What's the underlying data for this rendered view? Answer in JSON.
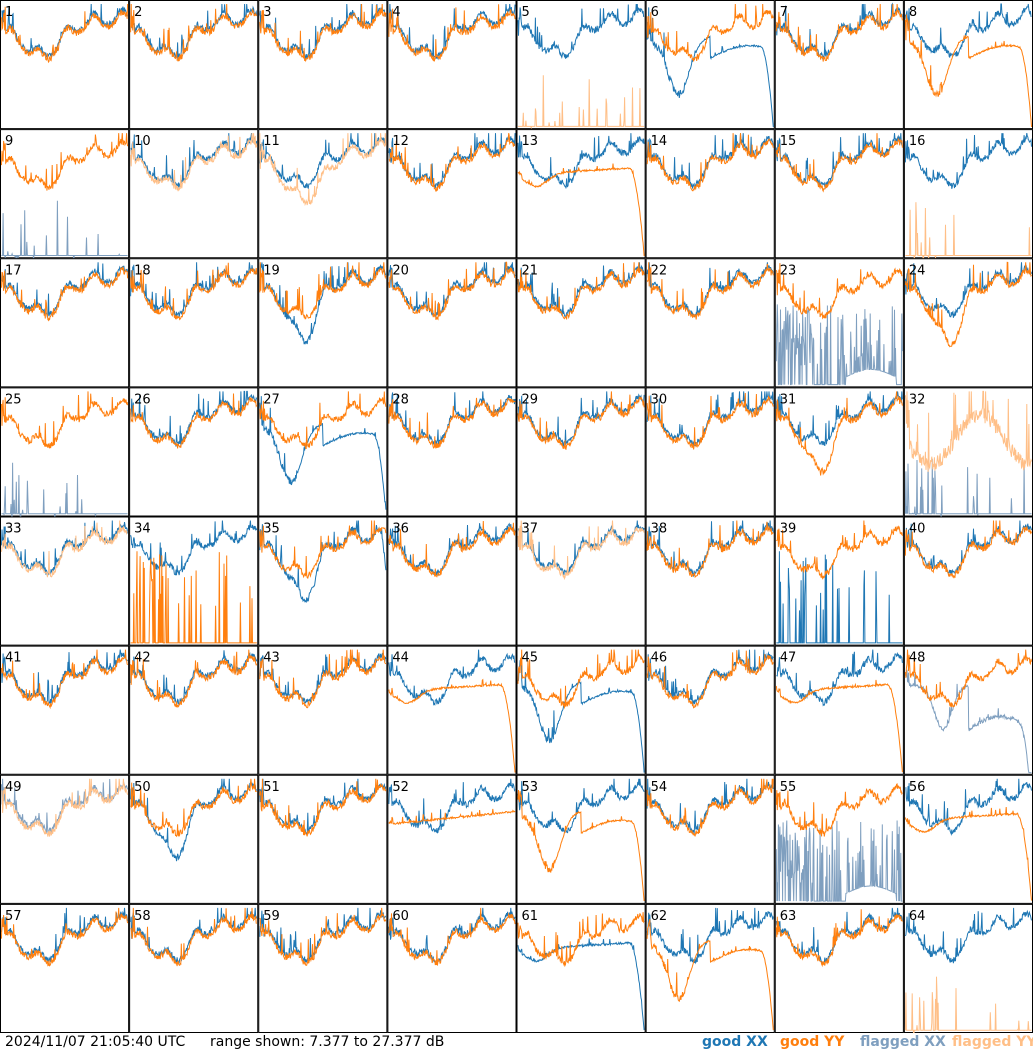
{
  "chart_data": {
    "type": "line",
    "panels": [
      "1",
      "2",
      "3",
      "4",
      "5",
      "6",
      "7",
      "8",
      "9",
      "10",
      "11",
      "12",
      "13",
      "14",
      "15",
      "16",
      "17",
      "18",
      "19",
      "20",
      "21",
      "22",
      "23",
      "24",
      "25",
      "26",
      "27",
      "28",
      "29",
      "30",
      "31",
      "32",
      "33",
      "34",
      "35",
      "36",
      "37",
      "38",
      "39",
      "40",
      "41",
      "42",
      "43",
      "44",
      "45",
      "46",
      "47",
      "48",
      "49",
      "50",
      "51",
      "52",
      "53",
      "54",
      "55",
      "56",
      "57",
      "58",
      "59",
      "60",
      "61",
      "62",
      "63",
      "64"
    ],
    "grid": {
      "rows": 8,
      "cols": 8
    },
    "ylim": [
      7.377,
      27.377
    ],
    "yunit": "dB",
    "series": [
      {
        "name": "good XX",
        "color": "#1f77b4"
      },
      {
        "name": "good YY",
        "color": "#ff7f0e"
      },
      {
        "name": "flagged XX",
        "color": "#7f9fbf"
      },
      {
        "name": "flagged YY",
        "color": "#ffbf87"
      }
    ],
    "panel_styles": {
      "5": {
        "xx": "normal",
        "yy": "flagged-spikes"
      },
      "6": {
        "xx": "rolloff-bowl",
        "yy": "normal"
      },
      "8": {
        "xx": "normal",
        "yy": "rolloff-bowl"
      },
      "9": {
        "xx": "flagged-spikes",
        "yy": "normal"
      },
      "10": {
        "xx": "normal",
        "yy": "flagged"
      },
      "11": {
        "xx": "normal",
        "yy": "flagged-low"
      },
      "13": {
        "xx": "normal",
        "yy": "rolloff"
      },
      "16": {
        "xx": "normal",
        "yy": "flagged-spikes"
      },
      "19": {
        "xx": "dip",
        "yy": "normal"
      },
      "23": {
        "xx": "flagged-spikes-bowl",
        "yy": "normal"
      },
      "24": {
        "xx": "normal",
        "yy": "dip"
      },
      "25": {
        "xx": "flagged-spikes",
        "yy": "normal"
      },
      "27": {
        "xx": "rolloff-bowl",
        "yy": "normal"
      },
      "31": {
        "xx": "normal",
        "yy": "dip"
      },
      "32": {
        "xx": "flagged-spikes",
        "yy": "flagged-noisy"
      },
      "33": {
        "xx": "normal",
        "yy": "flagged"
      },
      "34": {
        "xx": "normal",
        "yy": "bad-spikes"
      },
      "35": {
        "xx": "dip-rolloff",
        "yy": "normal"
      },
      "37": {
        "xx": "normal",
        "yy": "flagged"
      },
      "39": {
        "xx": "bad-spikes",
        "yy": "normal"
      },
      "44": {
        "xx": "normal",
        "yy": "rolloff"
      },
      "45": {
        "xx": "rolloff-bowl",
        "yy": "normal"
      },
      "47": {
        "xx": "normal",
        "yy": "rolloff"
      },
      "48": {
        "xx": "flagged-bowl",
        "yy": "normal"
      },
      "49": {
        "xx": "flagged",
        "yy": "flagged"
      },
      "50": {
        "xx": "dip",
        "yy": "normal"
      },
      "52": {
        "xx": "normal",
        "yy": "flat"
      },
      "53": {
        "xx": "normal",
        "yy": "rolloff-bowl"
      },
      "55": {
        "xx": "flagged-spikes-bowl",
        "yy": "normal"
      },
      "56": {
        "xx": "normal",
        "yy": "rolloff"
      },
      "61": {
        "xx": "rolloff",
        "yy": "normal"
      },
      "62": {
        "xx": "normal",
        "yy": "rolloff-bowl"
      },
      "63": {
        "xx": "normal",
        "yy": "normal"
      },
      "64": {
        "xx": "normal",
        "yy": "flagged-spikes"
      }
    }
  },
  "footer": {
    "timestamp": "2024/11/07 21:05:40 UTC",
    "range_text": "range shown: 7.377 to 27.377 dB",
    "legend": {
      "good_xx": {
        "label": "good XX",
        "color": "#1f77b4"
      },
      "good_yy": {
        "label": "good YY",
        "color": "#ff7f0e"
      },
      "flagged_xx": {
        "label": "flagged XX",
        "color": "#7f9fbf"
      },
      "flagged_yy": {
        "label": "flagged YY",
        "color": "#ffbf87"
      }
    }
  }
}
